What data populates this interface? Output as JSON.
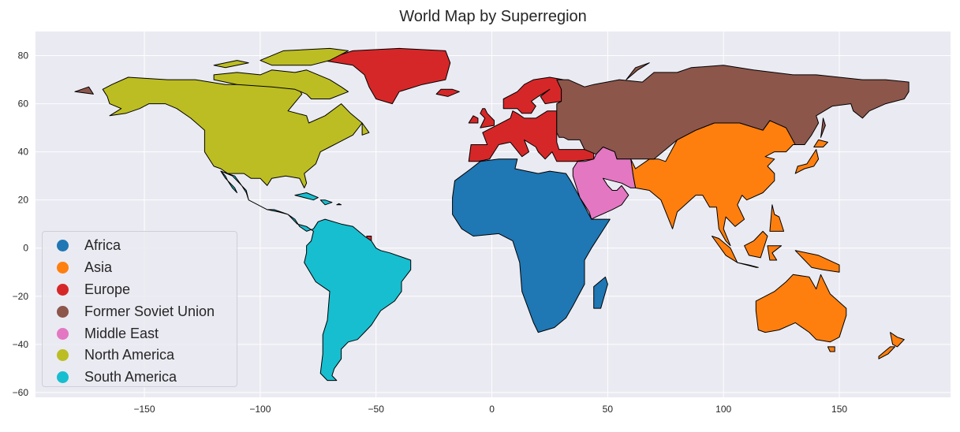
{
  "title": "World Map by Superregion",
  "chart_data": {
    "type": "map",
    "title": "World Map by Superregion",
    "xlim": [
      -197,
      198
    ],
    "ylim": [
      -62,
      90
    ],
    "x_ticks": [
      -150,
      -100,
      -50,
      0,
      50,
      100,
      150
    ],
    "y_ticks": [
      -60,
      -40,
      -20,
      0,
      20,
      40,
      60,
      80
    ],
    "x_tick_labels": [
      "−150",
      "−100",
      "−50",
      "0",
      "50",
      "100",
      "150"
    ],
    "y_tick_labels": [
      "−60",
      "−40",
      "−20",
      "0",
      "20",
      "40",
      "60",
      "80"
    ],
    "grid": true,
    "legend_position": "lower-left",
    "categories": [
      {
        "name": "Africa",
        "color": "#1f77b4"
      },
      {
        "name": "Asia",
        "color": "#ff7f0e"
      },
      {
        "name": "Europe",
        "color": "#d62728"
      },
      {
        "name": "Former Soviet Union",
        "color": "#8c564b"
      },
      {
        "name": "Middle East",
        "color": "#e377c2"
      },
      {
        "name": "North America",
        "color": "#bcbd22"
      },
      {
        "name": "South America",
        "color": "#17becf"
      }
    ]
  }
}
